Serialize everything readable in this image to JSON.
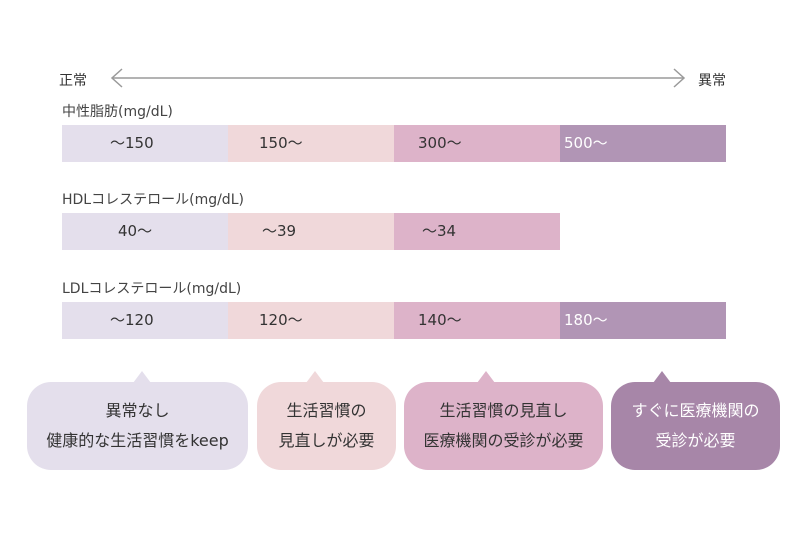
{
  "scale": {
    "left_label": "正常",
    "right_label": "異常"
  },
  "rows": [
    {
      "title": "中性脂肪(mg/dL)",
      "segments": [
        "～150",
        "150～",
        "300～",
        "500～"
      ]
    },
    {
      "title": "HDLコレステロール(mg/dL)",
      "segments": [
        "40～",
        "～39",
        "～34"
      ]
    },
    {
      "title": "LDLコレステロール(mg/dL)",
      "segments": [
        "～120",
        "120～",
        "140～",
        "180～"
      ]
    }
  ],
  "bubbles": [
    {
      "line1": "異常なし",
      "line2": "健康的な生活習慣をkeep"
    },
    {
      "line1": "生活習慣の",
      "line2": "見直しが必要"
    },
    {
      "line1": "生活習慣の見直し",
      "line2": "医療機関の受診が必要"
    },
    {
      "line1": "すぐに医療機関の",
      "line2": "受診が必要"
    }
  ],
  "colors": {
    "level1": "#e4dfec",
    "level2": "#f0d8da",
    "level3": "#ddb3c9",
    "level4": "#b195b5",
    "bubble4": "#a786a8"
  }
}
